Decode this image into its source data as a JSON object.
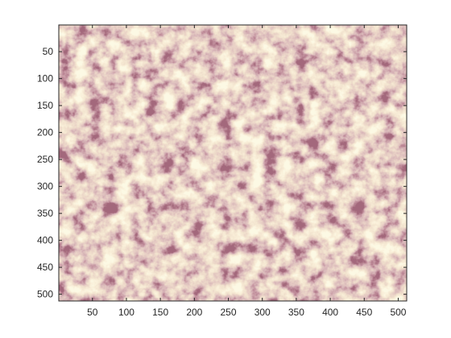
{
  "chart_data": {
    "type": "heatmap",
    "title": "",
    "xlabel": "",
    "ylabel": "",
    "xlim": [
      0.5,
      512.5
    ],
    "ylim": [
      0.5,
      512.5
    ],
    "y_direction": "reverse",
    "grid": false,
    "legend": "none",
    "colorbar": false,
    "xticks": [
      50,
      100,
      150,
      200,
      250,
      300,
      350,
      400,
      450,
      500
    ],
    "yticks": [
      50,
      100,
      150,
      200,
      250,
      300,
      350,
      400,
      450,
      500
    ],
    "xtick_labels": [
      "50",
      "100",
      "150",
      "200",
      "250",
      "300",
      "350",
      "400",
      "450",
      "500"
    ],
    "ytick_labels": [
      "50",
      "100",
      "150",
      "200",
      "250",
      "300",
      "350",
      "400",
      "450",
      "500"
    ],
    "matrix_size": [
      512,
      512
    ],
    "colormap": [
      "#5e2433",
      "#8a4756",
      "#b37a7e",
      "#cfa08f",
      "#e3c49f",
      "#f1dcb0",
      "#fbf1c8"
    ],
    "description_value_range": [
      0,
      1
    ]
  }
}
